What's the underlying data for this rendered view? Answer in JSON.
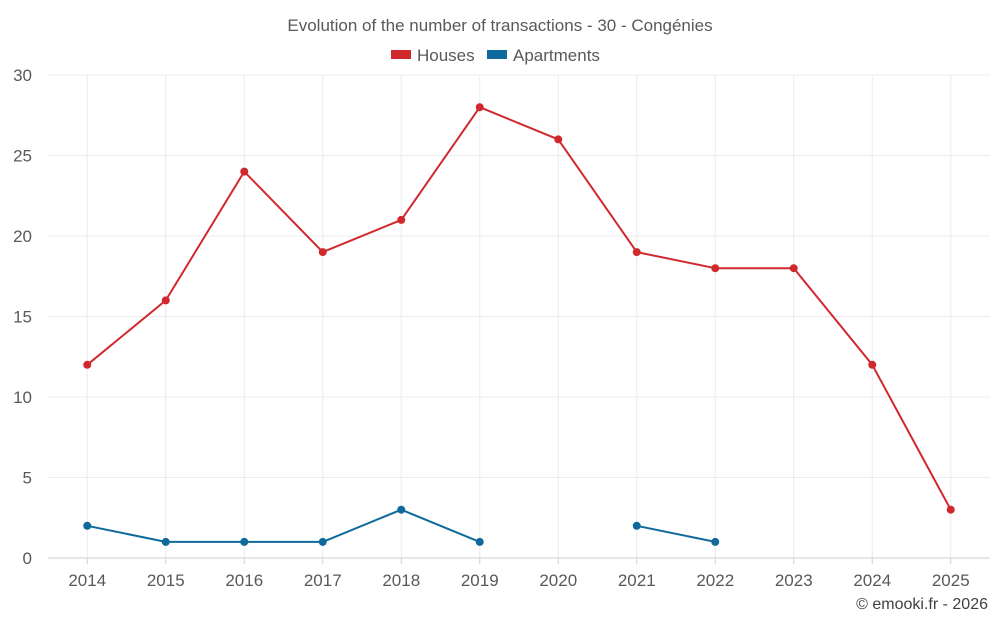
{
  "chart_data": {
    "type": "line",
    "title": "Evolution of the number of transactions - 30 - Congénies",
    "categories": [
      "2014",
      "2015",
      "2016",
      "2017",
      "2018",
      "2019",
      "2020",
      "2021",
      "2022",
      "2023",
      "2024",
      "2025"
    ],
    "ylim": [
      0,
      30
    ],
    "yticks": [
      0,
      5,
      10,
      15,
      20,
      25,
      30
    ],
    "grid": true,
    "legend_position": "top-center",
    "xlabel": "",
    "ylabel": "",
    "series": [
      {
        "name": "Houses",
        "color": "#d1282d",
        "values": [
          12,
          16,
          24,
          19,
          21,
          28,
          26,
          19,
          18,
          18,
          12,
          3
        ]
      },
      {
        "name": "Apartments",
        "color": "#0e6a9c",
        "values": [
          2,
          1,
          1,
          1,
          3,
          1,
          null,
          2,
          1,
          null,
          null,
          null
        ]
      }
    ]
  },
  "credit": "© emooki.fr - 2026"
}
